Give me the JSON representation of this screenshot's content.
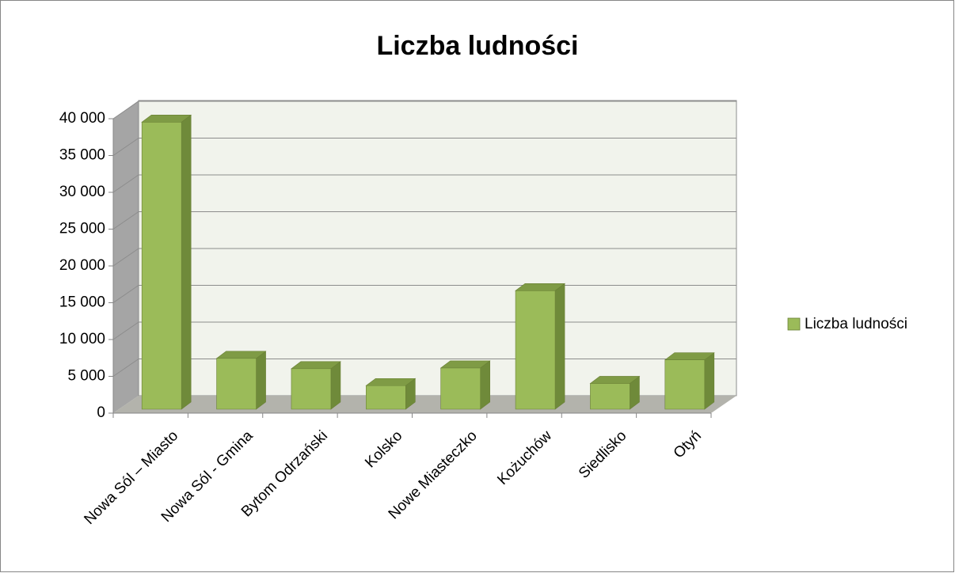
{
  "chart_data": {
    "type": "bar3d",
    "title": "Liczba ludności",
    "categories": [
      "Nowa Sól – Miasto",
      "Nowa Sól - Gmina",
      "Bytom Odrzański",
      "Kolsko",
      "Nowe Miasteczko",
      "Kożuchów",
      "Siedlisko",
      "Otyń"
    ],
    "series": [
      {
        "name": "Liczba ludności",
        "color": "#9bbb59",
        "values": [
          39000,
          6900,
          5500,
          3200,
          5600,
          16100,
          3500,
          6700
        ]
      }
    ],
    "ylim": [
      0,
      40000
    ],
    "yticks": [
      0,
      {
        "value": 5000,
        "label": "5 000"
      },
      {
        "value": 10000,
        "label": "10 000"
      },
      {
        "value": 15000,
        "label": "15 000"
      },
      {
        "value": 20000,
        "label": "20 000"
      },
      {
        "value": 25000,
        "label": "25 000"
      },
      {
        "value": 30000,
        "label": "30 000"
      },
      {
        "value": 35000,
        "label": "35 000"
      },
      {
        "value": 40000,
        "label": "40 000"
      }
    ],
    "grid": true,
    "legend": "right"
  }
}
